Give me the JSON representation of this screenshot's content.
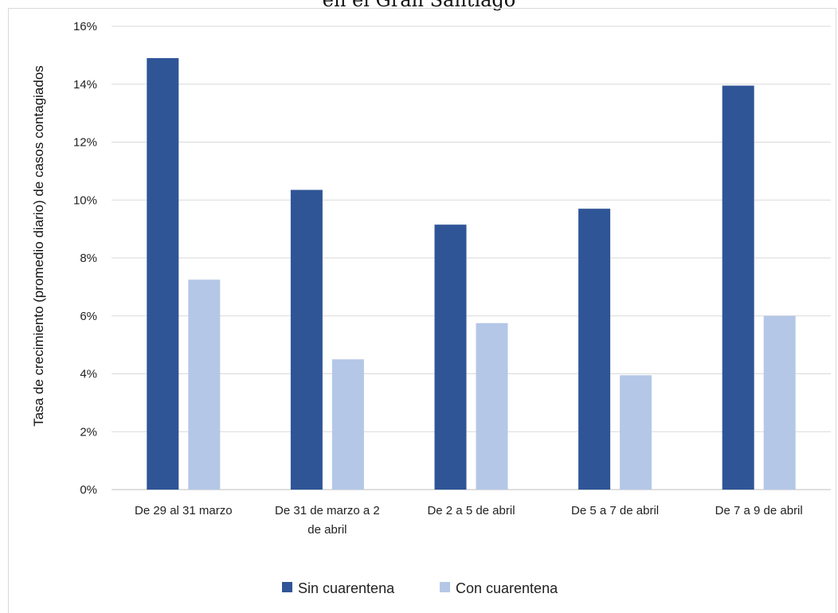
{
  "chart_data": {
    "type": "bar",
    "title_fragment": "en el Gran Santiago",
    "ylabel": "Tasa de crecimiento (promedio diario) de casos contagiados",
    "xlabel": "",
    "ylim": [
      0,
      0.16
    ],
    "yticks": [
      "0%",
      "2%",
      "4%",
      "6%",
      "8%",
      "10%",
      "12%",
      "14%",
      "16%"
    ],
    "categories": [
      [
        "De 29 al 31 marzo"
      ],
      [
        "De 31 de marzo a 2",
        "de abril"
      ],
      [
        "De 2 a 5 de abril"
      ],
      [
        "De 5 a 7 de abril"
      ],
      [
        "De 7 a 9 de abril"
      ]
    ],
    "series": [
      {
        "name": "Sin cuarentena",
        "color": "#2f5597",
        "values": [
          0.149,
          0.1035,
          0.0915,
          0.097,
          0.1395
        ]
      },
      {
        "name": "Con cuarentena",
        "color": "#b4c7e7",
        "values": [
          0.0725,
          0.045,
          0.0575,
          0.0395,
          0.06
        ]
      }
    ],
    "grid": true,
    "legend_position": "bottom"
  }
}
